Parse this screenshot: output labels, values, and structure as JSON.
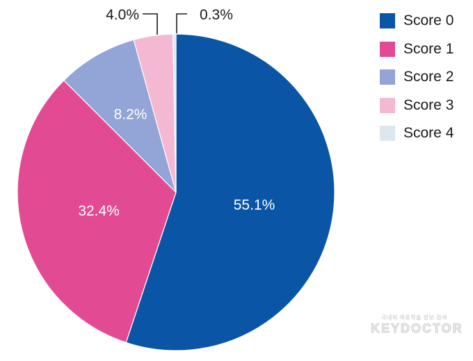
{
  "chart_data": {
    "type": "pie",
    "title": "",
    "legend_position": "top-right",
    "slices": [
      {
        "label": "Score 0",
        "value": 55.1,
        "value_label": "55.1%",
        "color": "#0a55a5",
        "label_color": "#ffffff",
        "label_placement": "inside"
      },
      {
        "label": "Score 1",
        "value": 32.4,
        "value_label": "32.4%",
        "color": "#e24b93",
        "label_color": "#ffffff",
        "label_placement": "inside"
      },
      {
        "label": "Score 2",
        "value": 8.2,
        "value_label": "8.2%",
        "color": "#92a5d6",
        "label_color": "#ffffff",
        "label_placement": "inside"
      },
      {
        "label": "Score 3",
        "value": 4.0,
        "value_label": "4.0%",
        "color": "#f5b8d3",
        "label_color": "#1a1a1a",
        "label_placement": "outside"
      },
      {
        "label": "Score 4",
        "value": 0.3,
        "value_label": "0.3%",
        "color": "#dde7f0",
        "label_color": "#1a1a1a",
        "label_placement": "outside"
      }
    ]
  },
  "watermark": {
    "subtitle": "국내외 의료학술 정보 검색",
    "brand": "KEYDOCTOR"
  }
}
